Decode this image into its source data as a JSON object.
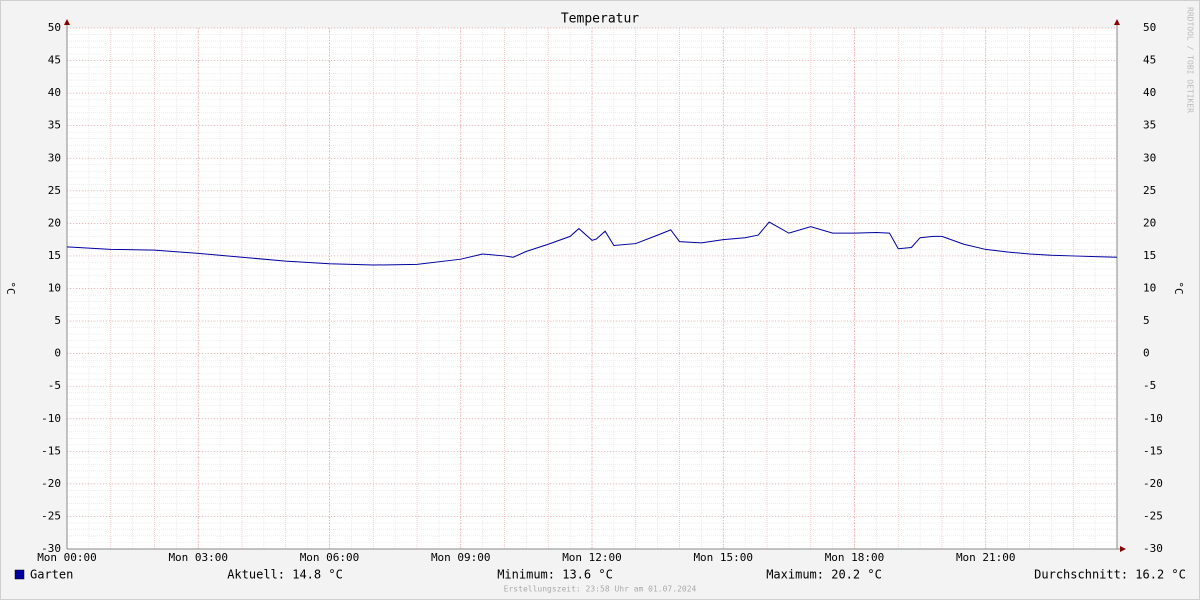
{
  "chart_data": {
    "type": "line",
    "title": "Temperatur",
    "y_label": "°C",
    "y2_label": "°C",
    "watermark": "RRDTOOL / TOBI OETIKER",
    "x": [
      0,
      1,
      2,
      3,
      4,
      5,
      6,
      7,
      8,
      9,
      9.5,
      10,
      10.2,
      10.5,
      11,
      11.5,
      11.7,
      12,
      12.1,
      12.3,
      12.5,
      13,
      13.5,
      13.8,
      14,
      14.5,
      15,
      15.5,
      15.8,
      16.05,
      16.5,
      17,
      17.5,
      18,
      18.5,
      18.8,
      19,
      19.3,
      19.5,
      19.8,
      20,
      20.5,
      21,
      21.5,
      22,
      22.5,
      23,
      23.5,
      24
    ],
    "xlim": [
      0,
      24
    ],
    "xticks": [
      {
        "value": 0,
        "label": "Mon 00:00"
      },
      {
        "value": 3,
        "label": "Mon 03:00"
      },
      {
        "value": 6,
        "label": "Mon 06:00"
      },
      {
        "value": 9,
        "label": "Mon 09:00"
      },
      {
        "value": 12,
        "label": "Mon 12:00"
      },
      {
        "value": 15,
        "label": "Mon 15:00"
      },
      {
        "value": 18,
        "label": "Mon 18:00"
      },
      {
        "value": 21,
        "label": "Mon 21:00"
      }
    ],
    "ylim": [
      -30,
      50
    ],
    "yticks": [
      -30,
      -25,
      -20,
      -15,
      -10,
      -5,
      0,
      5,
      10,
      15,
      20,
      25,
      30,
      35,
      40,
      45,
      50
    ],
    "grid": true,
    "series": [
      {
        "name": "Garten",
        "color": "#0000a0",
        "values": [
          16.4,
          16.0,
          15.9,
          15.4,
          14.8,
          14.2,
          13.8,
          13.6,
          13.7,
          14.5,
          15.3,
          15.0,
          14.8,
          15.7,
          16.8,
          18.0,
          19.2,
          17.4,
          17.6,
          18.8,
          16.6,
          16.9,
          18.2,
          19.0,
          17.2,
          17.0,
          17.5,
          17.8,
          18.2,
          20.2,
          18.5,
          19.5,
          18.5,
          18.5,
          18.6,
          18.5,
          16.1,
          16.3,
          17.8,
          18.0,
          18.0,
          16.8,
          16.0,
          15.6,
          15.3,
          15.1,
          15.0,
          14.9,
          14.8
        ]
      }
    ],
    "stats": [
      "Aktuell: 14.8 °C",
      "Minimum: 13.6 °C",
      "Maximum: 20.2 °C",
      "Durchschnitt: 16.2 °C"
    ],
    "footer": "Erstellungszeit: 23:58 Uhr am 01.07.2024"
  }
}
